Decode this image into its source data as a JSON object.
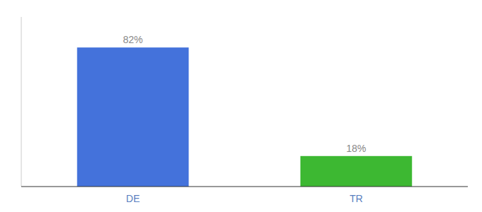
{
  "chart_data": {
    "type": "bar",
    "categories": [
      "DE",
      "TR"
    ],
    "values": [
      82,
      18
    ],
    "value_labels": [
      "82%",
      "18%"
    ],
    "colors": [
      "#4472db",
      "#3db832"
    ],
    "ylim": [
      0,
      100
    ],
    "data_labels": true,
    "tick_labels": "x",
    "grid": false
  }
}
